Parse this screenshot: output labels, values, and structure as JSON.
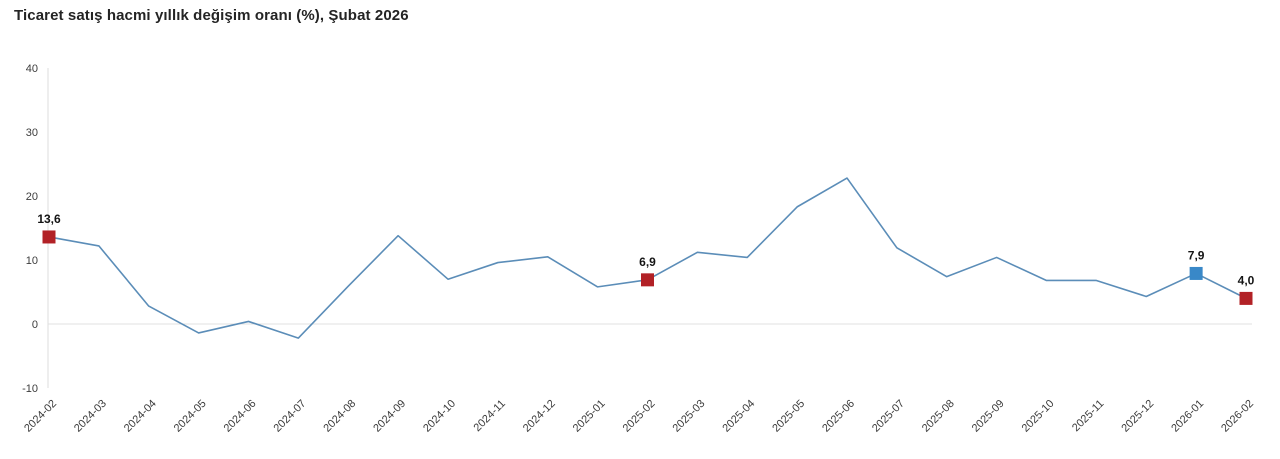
{
  "title": "Ticaret satış hacmi yıllık değişim oranı (%), Şubat 2026",
  "colors": {
    "line": "#5b8db8",
    "marker_red": "#b22126",
    "marker_blue": "#3988c8",
    "axis_line": "#dcdcdc",
    "zero_line": "#e0e0e0",
    "tick_label": "#3c3c3c",
    "title_text": "#242424",
    "data_label": "#141414"
  },
  "chart_data": {
    "type": "line",
    "title": "Ticaret satış hacmi yıllık değişim oranı (%), Şubat 2026",
    "xlabel": "",
    "ylabel": "",
    "x": [
      "2024-02",
      "2024-03",
      "2024-04",
      "2024-05",
      "2024-06",
      "2024-07",
      "2024-08",
      "2024-09",
      "2024-10",
      "2024-11",
      "2024-12",
      "2025-01",
      "2025-02",
      "2025-03",
      "2025-04",
      "2025-05",
      "2025-06",
      "2025-07",
      "2025-08",
      "2025-09",
      "2025-10",
      "2025-11",
      "2025-12",
      "2026-01",
      "2026-02"
    ],
    "values": [
      13.6,
      12.2,
      2.8,
      -1.4,
      0.4,
      -2.2,
      5.9,
      13.8,
      7.0,
      9.6,
      10.5,
      5.8,
      6.9,
      11.2,
      10.4,
      18.3,
      22.8,
      11.9,
      7.4,
      10.4,
      6.8,
      6.8,
      4.3,
      7.9,
      4.0
    ],
    "ylim": [
      -10,
      40
    ],
    "yticks": [
      40,
      30,
      20,
      10,
      0,
      -10
    ],
    "grid": "zero-line-only",
    "legend": "none",
    "highlighted_points": [
      {
        "x": "2024-02",
        "value": 13.6,
        "label": "13,6",
        "color": "red"
      },
      {
        "x": "2025-02",
        "value": 6.9,
        "label": "6,9",
        "color": "red"
      },
      {
        "x": "2026-01",
        "value": 7.9,
        "label": "7,9",
        "color": "blue"
      },
      {
        "x": "2026-02",
        "value": 4.0,
        "label": "4,0",
        "color": "red"
      }
    ]
  }
}
